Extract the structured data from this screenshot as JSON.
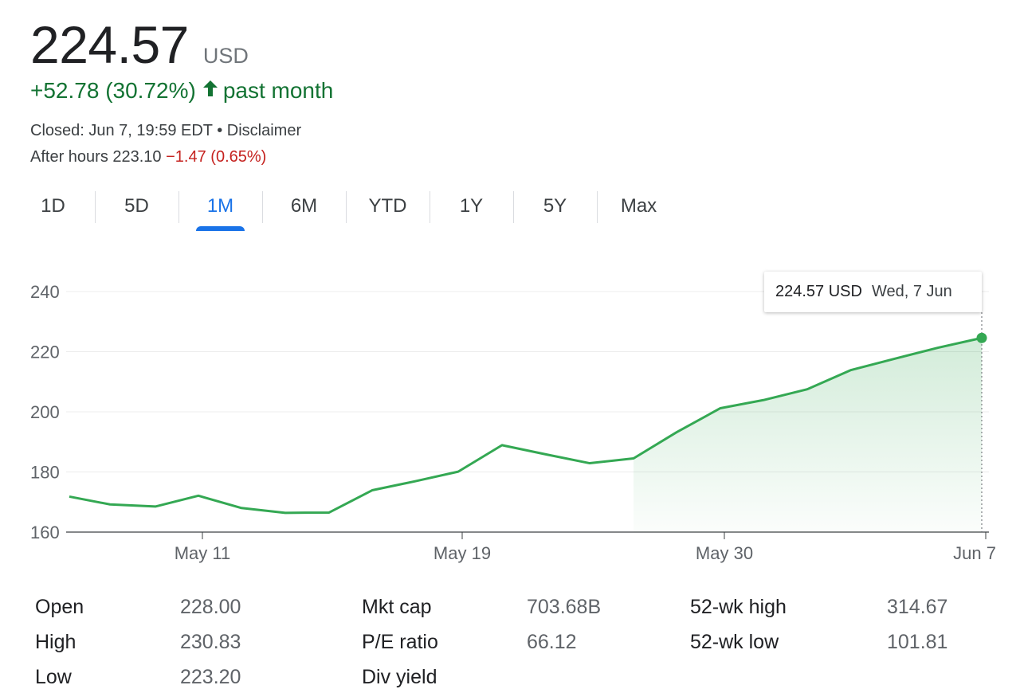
{
  "quote": {
    "price": "224.57",
    "currency": "USD",
    "change": "+52.78 (30.72%)",
    "change_period": "past month",
    "closed": "Closed: Jun 7, 19:59 EDT",
    "separator": " • ",
    "disclaimer": "Disclaimer",
    "after_hours_label": "After hours 223.10",
    "after_hours_change": "−1.47 (0.65%)",
    "up_color": "#137333",
    "down_color": "#c5221f"
  },
  "tabs": [
    {
      "label": "1D"
    },
    {
      "label": "5D"
    },
    {
      "label": "1M",
      "active": true
    },
    {
      "label": "6M"
    },
    {
      "label": "YTD"
    },
    {
      "label": "1Y"
    },
    {
      "label": "5Y"
    },
    {
      "label": "Max"
    }
  ],
  "tooltip": {
    "price": "224.57 USD",
    "date": "Wed, 7 Jun"
  },
  "chart_data": {
    "type": "area",
    "title": "",
    "xlabel": "",
    "ylabel": "",
    "ylim": [
      160,
      240
    ],
    "yticks": [
      160,
      180,
      200,
      220,
      240
    ],
    "xtick_labels": [
      "May 11",
      "May 19",
      "May 30",
      "Jun 7"
    ],
    "grid": true,
    "line_color": "#34a853",
    "series": [
      {
        "x": [
          "May 8",
          "May 9",
          "May 10",
          "May 11",
          "May 12",
          "May 15",
          "May 16",
          "May 17",
          "May 18",
          "May 19",
          "May 22",
          "May 23",
          "May 24",
          "May 25",
          "May 26",
          "May 30",
          "May 31",
          "Jun 1",
          "Jun 2",
          "Jun 5",
          "Jun 6",
          "Jun 7"
        ],
        "values": [
          171.8,
          169.2,
          168.5,
          172.1,
          168.0,
          166.4,
          166.5,
          173.9,
          176.9,
          180.1,
          188.9,
          185.8,
          182.9,
          184.5,
          193.2,
          201.2,
          203.9,
          207.5,
          213.9,
          217.6,
          221.3,
          224.57
        ]
      }
    ]
  },
  "stats": [
    {
      "label": "Open",
      "value": "228.00"
    },
    {
      "label": "High",
      "value": "230.83"
    },
    {
      "label": "Low",
      "value": "223.20"
    },
    {
      "label": "Mkt cap",
      "value": "703.68B"
    },
    {
      "label": "P/E ratio",
      "value": "66.12"
    },
    {
      "label": "Div yield",
      "value": ""
    },
    {
      "label": "52-wk high",
      "value": "314.67"
    },
    {
      "label": "52-wk low",
      "value": "101.81"
    }
  ]
}
